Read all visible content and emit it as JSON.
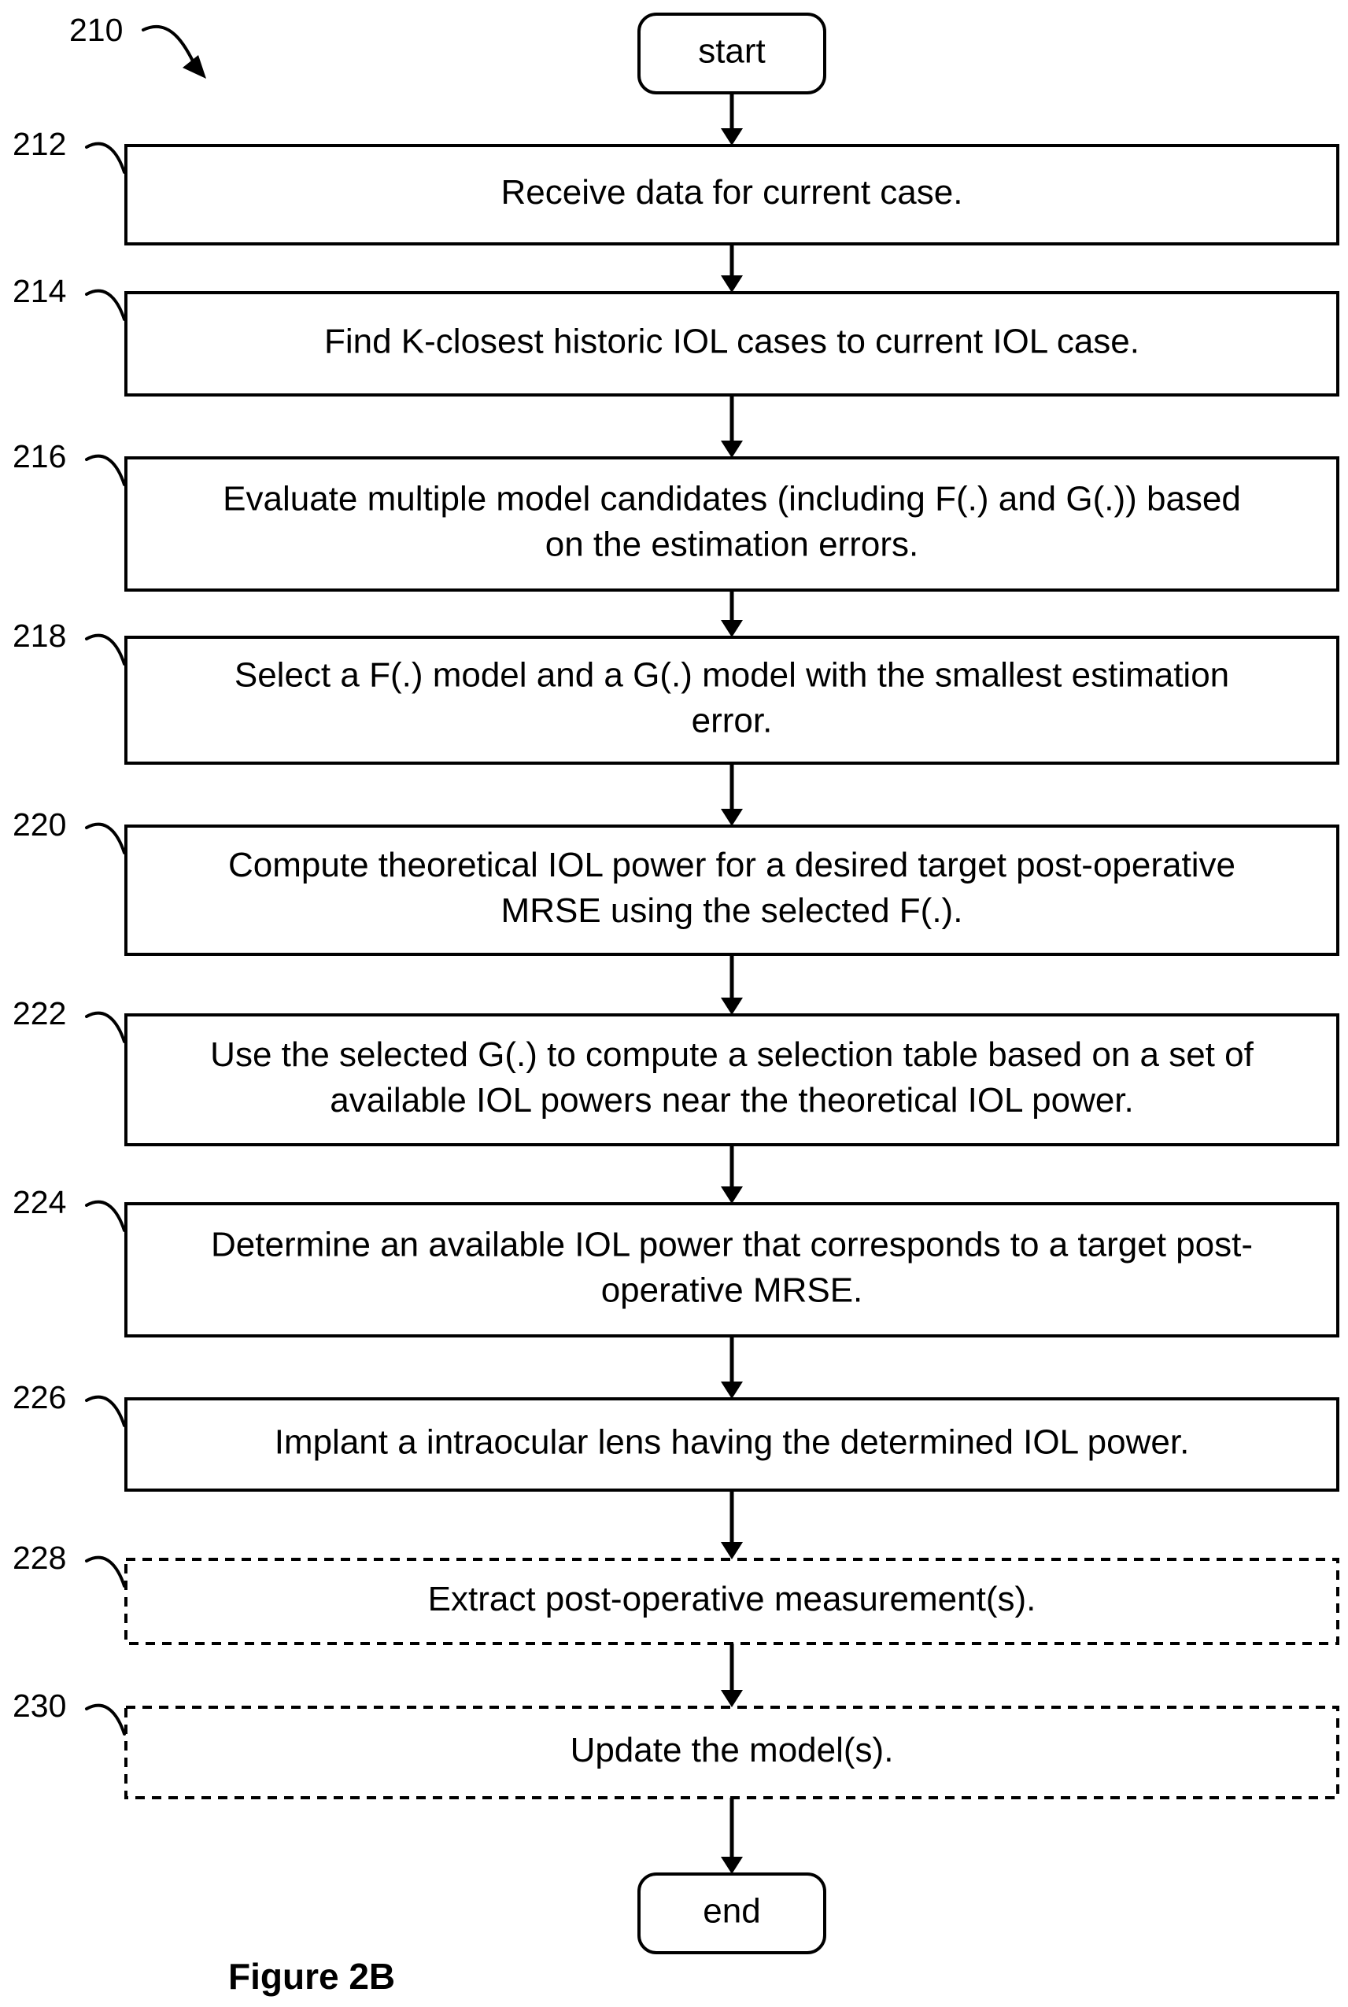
{
  "figure_ref": "210",
  "terminals": {
    "start": "start",
    "end": "end"
  },
  "steps": [
    {
      "ref": "212",
      "lines": [
        "Receive data for current case."
      ],
      "dashed": false
    },
    {
      "ref": "214",
      "lines": [
        "Find K-closest historic IOL cases to current IOL case."
      ],
      "dashed": false
    },
    {
      "ref": "216",
      "lines": [
        "Evaluate multiple model candidates (including F(.) and G(.)) based",
        "on the estimation errors."
      ],
      "dashed": false
    },
    {
      "ref": "218",
      "lines": [
        "Select a F(.) model and a G(.) model with the smallest estimation",
        "error."
      ],
      "dashed": false
    },
    {
      "ref": "220",
      "lines": [
        "Compute theoretical IOL power for a desired target post-operative",
        "MRSE using the selected F(.)."
      ],
      "dashed": false
    },
    {
      "ref": "222",
      "lines": [
        "Use the selected G(.) to compute a selection table based on a set of",
        "available IOL powers near the theoretical IOL power."
      ],
      "dashed": false
    },
    {
      "ref": "224",
      "lines": [
        "Determine an available IOL power that corresponds to a target post-",
        "operative MRSE."
      ],
      "dashed": false
    },
    {
      "ref": "226",
      "lines": [
        "Implant a intraocular lens having the determined IOL power."
      ],
      "dashed": false
    },
    {
      "ref": "228",
      "lines": [
        "Extract post-operative measurement(s)."
      ],
      "dashed": true
    },
    {
      "ref": "230",
      "lines": [
        "Update the model(s)."
      ],
      "dashed": true
    }
  ],
  "caption": "Figure 2B"
}
